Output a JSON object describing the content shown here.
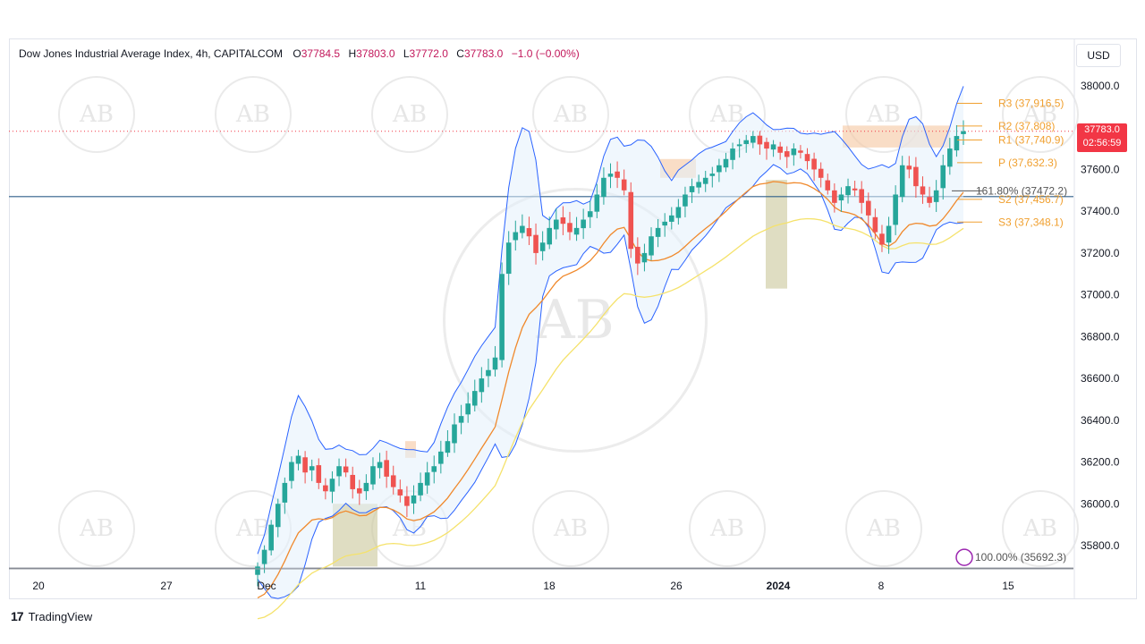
{
  "legend": {
    "title": "Dow Jones Industrial Average Index, 4h, CAPITALCOM",
    "open_k": "O",
    "open": "37784.5",
    "high_k": "H",
    "high": "37803.0",
    "low_k": "L",
    "low": "37772.0",
    "close_k": "C",
    "close": "37783.0",
    "change": "−1.0 (−0.00%)"
  },
  "currency": "USD",
  "last_price": {
    "price": "37783.0",
    "countdown": "02:56:59"
  },
  "brand": {
    "name": "TradingView",
    "mark": "17"
  },
  "watermark": {
    "text": "AB"
  },
  "colors": {
    "up": "#26a69a",
    "down": "#ef5350",
    "bb": "#2962ff",
    "ema_fast": "#f0892c",
    "ema_slow": "#f5e26b",
    "pivot": "#f0a030",
    "hline": "#2e5f8a"
  },
  "chart_data": {
    "type": "candlestick",
    "title": "Dow Jones Industrial Average Index, 4h, CAPITALCOM",
    "ylim": [
      35700,
      38100
    ],
    "yticks": [
      35800,
      36000,
      36200,
      36400,
      36600,
      36800,
      37000,
      37200,
      37400,
      37600,
      37800,
      38000
    ],
    "ytick_labels": [
      "35800.0",
      "36000.0",
      "36200.0",
      "36400.0",
      "36600.0",
      "36800.0",
      "37000.0",
      "37200.0",
      "37400.0",
      "37600.0",
      "37800.0",
      "38000.0"
    ],
    "xticks": [
      "20",
      "27",
      "Dec",
      "11",
      "18",
      "26",
      "2024",
      "8",
      "15"
    ],
    "pivots": [
      {
        "label": "R3 (37,916.5)",
        "value": 37916.5
      },
      {
        "label": "R2 (37,808)",
        "value": 37808
      },
      {
        "label": "R1 (37,740.9)",
        "value": 37740.9
      },
      {
        "label": "P (37,632.3)",
        "value": 37632.3
      },
      {
        "label": "S2 (37,456.7)",
        "value": 37456.7
      },
      {
        "label": "S3 (37,348.1)",
        "value": 37348.1
      }
    ],
    "fib": {
      "label": "161.80% (37472.2)",
      "value": 37472.2
    },
    "fib_base": {
      "label": "100.00% (35692.3)",
      "value": 35692.3
    },
    "horizontal_line": 37470,
    "candle_path": [
      35700,
      35780,
      35900,
      36000,
      36100,
      36200,
      36230,
      36150,
      36180,
      36100,
      36060,
      36120,
      36180,
      36150,
      36070,
      36050,
      36100,
      36180,
      36200,
      36130,
      36080,
      36040,
      35990,
      36040,
      36100,
      36150,
      36180,
      36250,
      36300,
      36380,
      36420,
      36480,
      36540,
      36600,
      36640,
      36700,
      37100,
      37250,
      37300,
      37330,
      37280,
      37200,
      37250,
      37320,
      37360,
      37340,
      37300,
      37320,
      37360,
      37400,
      37480,
      37560,
      37580,
      37560,
      37500,
      37220,
      37150,
      37200,
      37280,
      37320,
      37350,
      37380,
      37420,
      37480,
      37520,
      37540,
      37560,
      37580,
      37620,
      37650,
      37700,
      37720,
      37740,
      37760,
      37720,
      37700,
      37720,
      37680,
      37660,
      37700,
      37680,
      37640,
      37600,
      37560,
      37500,
      37440,
      37480,
      37520,
      37500,
      37440,
      37380,
      37300,
      37240,
      37330,
      37480,
      37620,
      37600,
      37520,
      37480,
      37440,
      37500,
      37620,
      37700,
      37760,
      37783
    ]
  }
}
